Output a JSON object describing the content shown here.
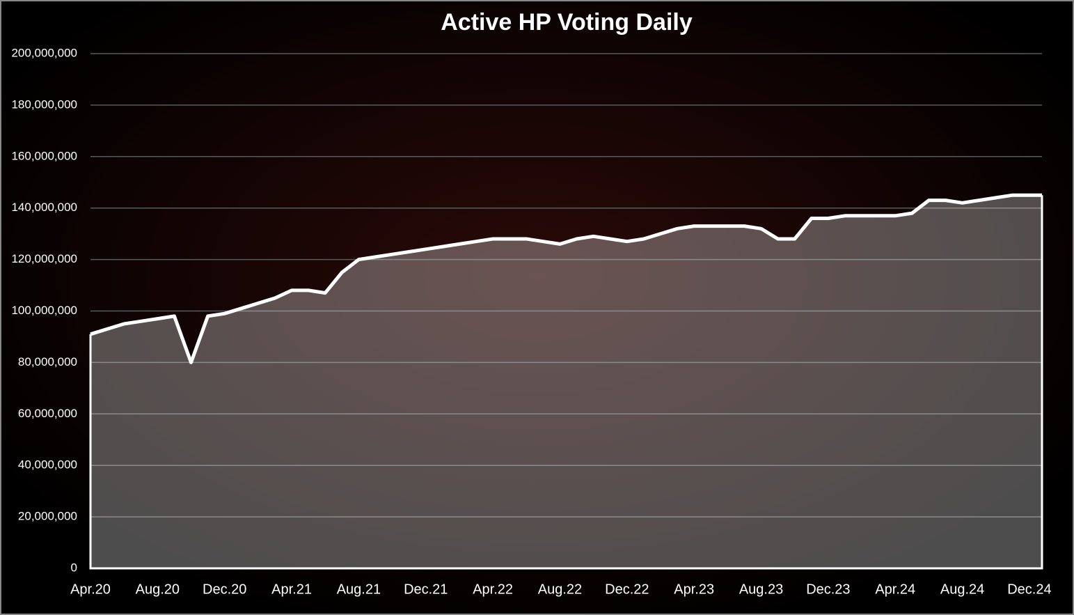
{
  "chart_data": {
    "type": "area",
    "title": "Active HP Voting Daily",
    "categories": [
      "Apr.20",
      null,
      null,
      null,
      "Aug.20",
      null,
      null,
      null,
      "Dec.20",
      null,
      null,
      null,
      "Apr.21",
      null,
      null,
      null,
      "Aug.21",
      null,
      null,
      null,
      "Dec.21",
      null,
      null,
      null,
      "Apr.22",
      null,
      null,
      null,
      "Aug.22",
      null,
      null,
      null,
      "Dec.22",
      null,
      null,
      null,
      "Apr.23",
      null,
      null,
      null,
      "Aug.23",
      null,
      null,
      null,
      "Dec.23",
      null,
      null,
      null,
      "Apr.24",
      null,
      null,
      null,
      "Aug.24",
      null,
      null,
      null,
      "Dec.24"
    ],
    "values": [
      91000000,
      93000000,
      95000000,
      96000000,
      97000000,
      98000000,
      80000000,
      98000000,
      99000000,
      101000000,
      103000000,
      105000000,
      108000000,
      108000000,
      107000000,
      115000000,
      120000000,
      121000000,
      122000000,
      123000000,
      124000000,
      125000000,
      126000000,
      127000000,
      128000000,
      128000000,
      128000000,
      127000000,
      126000000,
      128000000,
      129000000,
      128000000,
      127000000,
      128000000,
      130000000,
      132000000,
      133000000,
      133000000,
      133000000,
      133000000,
      132000000,
      128000000,
      128000000,
      136000000,
      136000000,
      137000000,
      137000000,
      137000000,
      137000000,
      138000000,
      143000000,
      143000000,
      142000000,
      143000000,
      144000000,
      145000000,
      145000000
    ],
    "color": "#ffffff",
    "ylim": [
      0,
      200000000
    ],
    "yticks": [
      0,
      {
        "value": 20000000,
        "label": "20,000,000"
      },
      {
        "value": 40000000,
        "label": "40,000,000"
      },
      {
        "value": 60000000,
        "label": "60,000,000"
      },
      {
        "value": 80000000,
        "label": "80,000,000"
      },
      {
        "value": 100000000,
        "label": "100,000,000"
      },
      {
        "value": 120000000,
        "label": "120,000,000"
      },
      {
        "value": 140000000,
        "label": "140,000,000"
      },
      {
        "value": 160000000,
        "label": "160,000,000"
      },
      {
        "value": 180000000,
        "label": "180,000,000"
      },
      {
        "value": 200000000,
        "label": "200,000,000"
      }
    ],
    "grid": true
  }
}
